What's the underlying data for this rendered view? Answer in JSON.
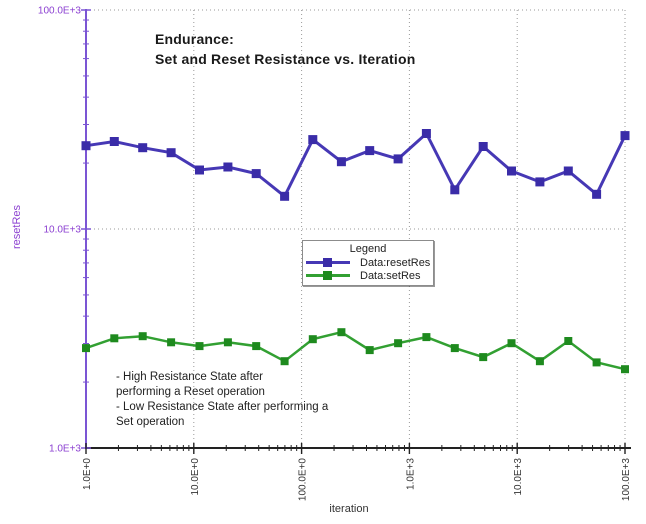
{
  "chart_data": {
    "type": "line",
    "title": "Endurance:\nSet and Reset Resistance vs. Iteration",
    "xlabel": "iteration",
    "ylabel": "resetRes",
    "x_scale": "log",
    "y_scale": "log",
    "xlim": [
      1,
      100000
    ],
    "ylim": [
      1000,
      100000
    ],
    "x_tick_labels": [
      "1.0E+0",
      "10.0E+0",
      "100.0E+0",
      "1.0E+3",
      "10.0E+3",
      "100.0E+3"
    ],
    "y_tick_labels": [
      "1.0E+3",
      "10.0E+3",
      "100.0E+3"
    ],
    "grid": "dotted lines at decades",
    "legend_position": "center",
    "x": [
      1,
      1.83,
      3.36,
      6.16,
      11.3,
      20.7,
      37.9,
      69.5,
      127,
      234,
      428,
      785,
      1438,
      2637,
      4833,
      8859,
      16238,
      29764,
      54556,
      100000
    ],
    "series": [
      {
        "name": "Data:resetRes",
        "color": "#4638b5",
        "marker_color": "#3a2ca8",
        "values": [
          24000,
          25100,
          23500,
          22300,
          18600,
          19200,
          17900,
          14100,
          25600,
          20300,
          22800,
          20900,
          27300,
          15100,
          23800,
          18400,
          16400,
          18400,
          14400,
          26700
        ]
      },
      {
        "name": "Data:setRes",
        "color": "#32a032",
        "marker_color": "#1e8a1e",
        "values": [
          2860,
          3170,
          3240,
          3040,
          2920,
          3040,
          2920,
          2490,
          3140,
          3380,
          2800,
          3010,
          3210,
          2860,
          2600,
          3010,
          2490,
          3080,
          2460,
          2290
        ]
      }
    ],
    "legend": {
      "title": "Legend"
    },
    "annotation": "- High Resistance State after\nperforming a Reset operation\n- Low Resistance State after performing a\nSet operation"
  },
  "colors": {
    "y_axis": "#7b55d4",
    "y_tick_text": "#8b3fd1",
    "x_axis": "#222222",
    "x_tick_text": "#333333",
    "grid": "#9a9a9a",
    "title_text": "#1a1a1a",
    "annotation_text": "#222222"
  }
}
